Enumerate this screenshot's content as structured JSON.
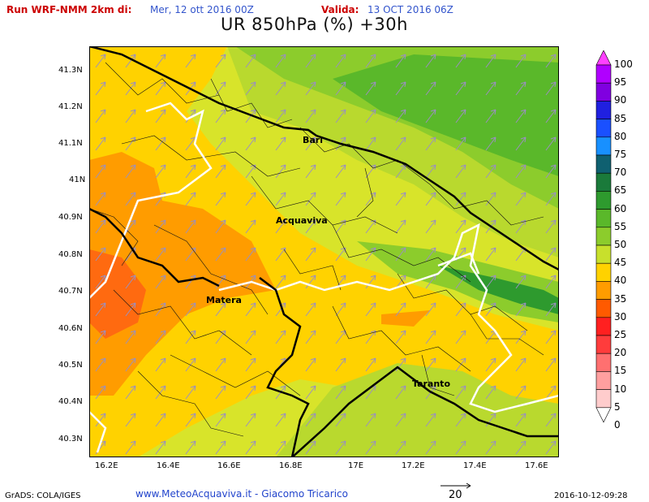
{
  "header": {
    "run_label": "Run WRF-NMM 2km di:",
    "run_date": "Mer, 12 ott 2016 00Z",
    "valid_label": "Valida:",
    "valid_date": "13 OCT 2016 06Z",
    "title": "UR 850hPa (%) +30h"
  },
  "map": {
    "lat_ticks": [
      "41.3N",
      "41.2N",
      "41.1N",
      "41N",
      "40.9N",
      "40.8N",
      "40.7N",
      "40.6N",
      "40.5N",
      "40.4N",
      "40.3N"
    ],
    "lon_ticks": [
      "16.2E",
      "16.4E",
      "16.6E",
      "16.8E",
      "17E",
      "17.2E",
      "17.4E",
      "17.6E"
    ],
    "cities": [
      "Bari",
      "Acquaviva",
      "Matera",
      "Taranto"
    ]
  },
  "colorbar": {
    "labels": [
      "100",
      "95",
      "90",
      "85",
      "80",
      "75",
      "70",
      "65",
      "60",
      "55",
      "50",
      "45",
      "40",
      "35",
      "30",
      "25",
      "20",
      "15",
      "10",
      "5",
      "0"
    ],
    "colors": [
      "#ff40ff",
      "#b000ff",
      "#8000e0",
      "#2020e0",
      "#1a50ff",
      "#1890ff",
      "#0f6070",
      "#1a7a3a",
      "#2e9a2e",
      "#5ab82a",
      "#8ccc2c",
      "#c8e02c",
      "#ffd200",
      "#ff9c00",
      "#ff5a00",
      "#ff2020",
      "#ff3c3c",
      "#ff7070",
      "#ff9f9f",
      "#ffcccc"
    ]
  },
  "footer": {
    "left": "GrADS: COLA/IGES",
    "center": "www.MeteoAcquaviva.it - Giacomo Tricarico",
    "vector_ref": "20",
    "right": "2016-10-12-09:28"
  },
  "colors": {
    "header_red": "#cc0000",
    "header_blue": "#3355cc",
    "footer_blue": "#2244cc"
  }
}
